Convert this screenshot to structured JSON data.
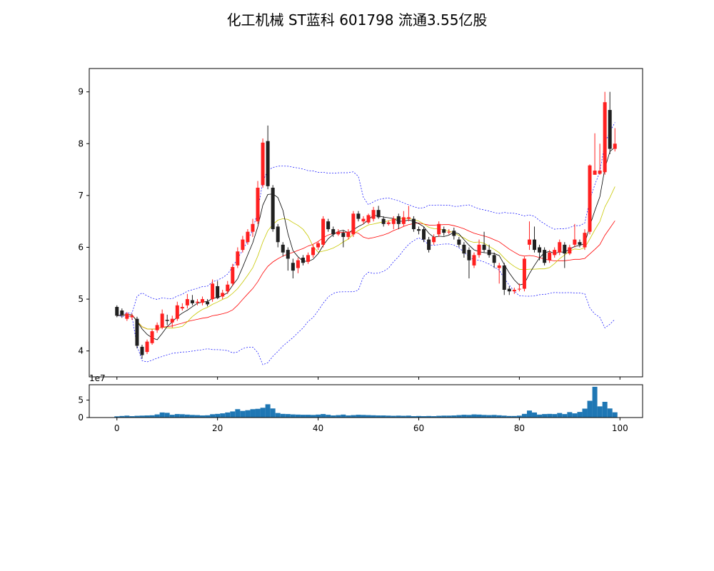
{
  "title": "化工机械 ST蓝科 601798 流通3.55亿股",
  "chart_data": [
    {
      "type": "candlestick",
      "price_axis": {
        "ylim": [
          3.5,
          9.45
        ],
        "ticks": [
          4,
          5,
          6,
          7,
          8,
          9
        ]
      },
      "x_axis": {
        "xlim": [
          -5.5,
          104.5
        ],
        "ticks": [
          0,
          20,
          40,
          60,
          80,
          100
        ]
      },
      "colors": {
        "up": "#ff2020",
        "down": "#202020",
        "ma_short": "#000000",
        "ma_mid": "#c8c800",
        "ma_long": "#ff0000",
        "band": "#0000ff"
      },
      "series": [
        {
          "name": "K",
          "ohlc": [
            [
              4.85,
              4.68,
              4.88,
              4.65
            ],
            [
              4.78,
              4.7,
              4.82,
              4.64
            ],
            [
              4.62,
              4.72,
              4.75,
              4.58
            ],
            [
              4.65,
              4.68,
              4.72,
              4.6
            ],
            [
              4.62,
              4.1,
              4.66,
              4.05
            ],
            [
              4.08,
              3.92,
              4.12,
              3.85
            ],
            [
              3.98,
              4.18,
              4.22,
              3.94
            ],
            [
              4.15,
              4.38,
              4.42,
              4.12
            ],
            [
              4.4,
              4.5,
              4.55,
              4.35
            ],
            [
              4.45,
              4.72,
              4.8,
              4.42
            ],
            [
              4.6,
              4.58,
              4.7,
              4.5
            ],
            [
              4.55,
              4.62,
              4.68,
              4.45
            ],
            [
              4.62,
              4.88,
              4.95,
              4.58
            ],
            [
              4.82,
              4.85,
              4.92,
              4.78
            ],
            [
              4.88,
              5.0,
              5.1,
              4.82
            ],
            [
              4.98,
              4.92,
              5.08,
              4.88
            ],
            [
              4.93,
              4.95,
              5.0,
              4.88
            ],
            [
              4.93,
              5.0,
              5.05,
              4.88
            ],
            [
              4.95,
              4.9,
              5.0,
              4.86
            ],
            [
              5.0,
              5.3,
              5.38,
              4.95
            ],
            [
              5.25,
              5.02,
              5.35,
              5.0
            ],
            [
              5.05,
              5.12,
              5.18,
              5.0
            ],
            [
              5.15,
              5.28,
              5.35,
              5.1
            ],
            [
              5.3,
              5.62,
              5.68,
              5.25
            ],
            [
              5.65,
              5.92,
              6.0,
              5.6
            ],
            [
              5.95,
              6.15,
              6.22,
              5.9
            ],
            [
              6.1,
              6.3,
              6.35,
              6.05
            ],
            [
              6.3,
              6.45,
              6.55,
              6.2
            ],
            [
              6.5,
              7.15,
              7.28,
              6.45
            ],
            [
              7.2,
              8.02,
              8.1,
              7.15
            ],
            [
              8.05,
              7.18,
              8.35,
              7.12
            ],
            [
              7.15,
              6.35,
              7.2,
              6.3
            ],
            [
              6.4,
              6.1,
              6.45,
              6.0
            ],
            [
              6.05,
              5.9,
              6.1,
              5.82
            ],
            [
              5.95,
              5.78,
              6.0,
              5.55
            ],
            [
              5.7,
              5.55,
              5.78,
              5.4
            ],
            [
              5.6,
              5.75,
              5.8,
              5.5
            ],
            [
              5.8,
              5.7,
              5.85,
              5.65
            ],
            [
              5.72,
              5.85,
              5.9,
              5.68
            ],
            [
              5.85,
              6.0,
              6.05,
              5.8
            ],
            [
              6.0,
              6.08,
              6.12,
              5.95
            ],
            [
              6.05,
              6.55,
              6.6,
              6.0
            ],
            [
              6.5,
              6.35,
              6.55,
              6.3
            ],
            [
              6.35,
              6.25,
              6.4,
              6.2
            ],
            [
              6.25,
              6.3,
              6.35,
              6.22
            ],
            [
              6.28,
              6.2,
              6.32,
              6.0
            ],
            [
              6.2,
              6.3,
              6.35,
              6.15
            ],
            [
              6.25,
              6.65,
              6.7,
              6.2
            ],
            [
              6.65,
              6.55,
              6.7,
              6.5
            ],
            [
              6.5,
              6.55,
              6.6,
              6.45
            ],
            [
              6.48,
              6.62,
              6.65,
              6.45
            ],
            [
              6.55,
              6.72,
              6.78,
              6.5
            ],
            [
              6.72,
              6.58,
              6.8,
              6.55
            ],
            [
              6.55,
              6.45,
              6.6,
              6.4
            ],
            [
              6.45,
              6.48,
              6.52,
              6.42
            ],
            [
              6.45,
              6.55,
              6.6,
              6.35
            ],
            [
              6.6,
              6.45,
              6.65,
              6.35
            ],
            [
              6.45,
              6.58,
              6.7,
              6.4
            ],
            [
              6.55,
              6.58,
              6.8,
              6.5
            ],
            [
              6.55,
              6.35,
              6.6,
              6.3
            ],
            [
              6.35,
              6.32,
              6.4,
              6.25
            ],
            [
              6.35,
              6.15,
              6.4,
              6.1
            ],
            [
              6.15,
              5.95,
              6.2,
              5.9
            ],
            [
              6.1,
              6.2,
              6.25,
              6.05
            ],
            [
              6.25,
              6.45,
              6.5,
              6.2
            ],
            [
              6.35,
              6.28,
              6.4,
              6.22
            ],
            [
              6.3,
              6.3,
              6.35,
              6.25
            ],
            [
              6.32,
              6.22,
              6.38,
              6.15
            ],
            [
              6.15,
              6.05,
              6.2,
              6.0
            ],
            [
              6.05,
              5.88,
              6.1,
              5.8
            ],
            [
              5.95,
              5.75,
              6.0,
              5.4
            ],
            [
              5.65,
              5.85,
              5.9,
              5.6
            ],
            [
              5.85,
              6.05,
              6.15,
              5.8
            ],
            [
              6.05,
              5.95,
              6.3,
              5.9
            ],
            [
              5.95,
              5.85,
              6.05,
              5.8
            ],
            [
              5.85,
              5.7,
              5.9,
              5.6
            ],
            [
              5.6,
              5.65,
              5.7,
              5.3
            ],
            [
              5.65,
              5.18,
              5.7,
              5.08
            ],
            [
              5.2,
              5.15,
              5.25,
              5.08
            ],
            [
              5.15,
              5.18,
              5.22,
              5.1
            ],
            [
              5.2,
              5.2,
              5.3,
              5.15
            ],
            [
              5.2,
              5.78,
              5.82,
              5.15
            ],
            [
              6.05,
              6.15,
              6.5,
              5.95
            ],
            [
              6.15,
              5.95,
              6.4,
              5.9
            ],
            [
              6.0,
              5.9,
              6.05,
              5.75
            ],
            [
              5.95,
              5.7,
              6.0,
              5.65
            ],
            [
              5.75,
              5.9,
              5.95,
              5.7
            ],
            [
              5.85,
              5.95,
              6.0,
              5.8
            ],
            [
              5.9,
              6.1,
              6.15,
              5.85
            ],
            [
              6.05,
              5.88,
              6.1,
              5.6
            ],
            [
              5.88,
              6.0,
              6.05,
              5.85
            ],
            [
              6.05,
              6.15,
              6.45,
              6.0
            ],
            [
              6.1,
              6.05,
              6.15,
              6.0
            ],
            [
              6.0,
              6.28,
              6.35,
              5.95
            ],
            [
              6.3,
              7.58,
              7.6,
              6.25
            ],
            [
              7.4,
              7.48,
              8.2,
              7.4
            ],
            [
              7.42,
              7.48,
              8.0,
              7.4
            ],
            [
              7.45,
              8.8,
              9.0,
              7.4
            ],
            [
              8.65,
              7.9,
              9.0,
              7.8
            ],
            [
              7.9,
              8.0,
              8.3,
              7.85
            ]
          ]
        },
        {
          "name": "Volume",
          "scale_label": "1e7",
          "ylim": [
            0,
            9.4
          ],
          "ticks": [
            0,
            5
          ],
          "color": "#1f77b4",
          "values": [
            0.35,
            0.45,
            0.55,
            0.4,
            0.5,
            0.55,
            0.6,
            0.65,
            0.9,
            1.45,
            1.35,
            0.8,
            1.0,
            0.95,
            0.85,
            0.75,
            0.7,
            0.6,
            0.65,
            0.95,
            1.05,
            1.2,
            1.45,
            1.75,
            2.4,
            1.9,
            2.1,
            2.4,
            2.5,
            2.8,
            3.8,
            2.6,
            1.3,
            1.05,
            1.0,
            0.9,
            0.85,
            0.8,
            0.8,
            0.75,
            0.85,
            1.0,
            0.8,
            0.6,
            0.7,
            0.85,
            0.6,
            0.7,
            0.8,
            0.75,
            0.7,
            0.65,
            0.6,
            0.6,
            0.55,
            0.5,
            0.55,
            0.5,
            0.55,
            0.4,
            0.45,
            0.4,
            0.45,
            0.4,
            0.5,
            0.55,
            0.55,
            0.6,
            0.7,
            0.8,
            0.75,
            0.9,
            0.85,
            0.75,
            0.7,
            0.75,
            0.65,
            0.55,
            0.45,
            0.45,
            0.55,
            1.05,
            2.0,
            1.45,
            0.85,
            1.0,
            1.05,
            1.0,
            1.3,
            1.0,
            1.55,
            1.2,
            1.6,
            2.55,
            4.8,
            8.8,
            3.2,
            4.5,
            2.6,
            1.5
          ]
        }
      ]
    }
  ]
}
